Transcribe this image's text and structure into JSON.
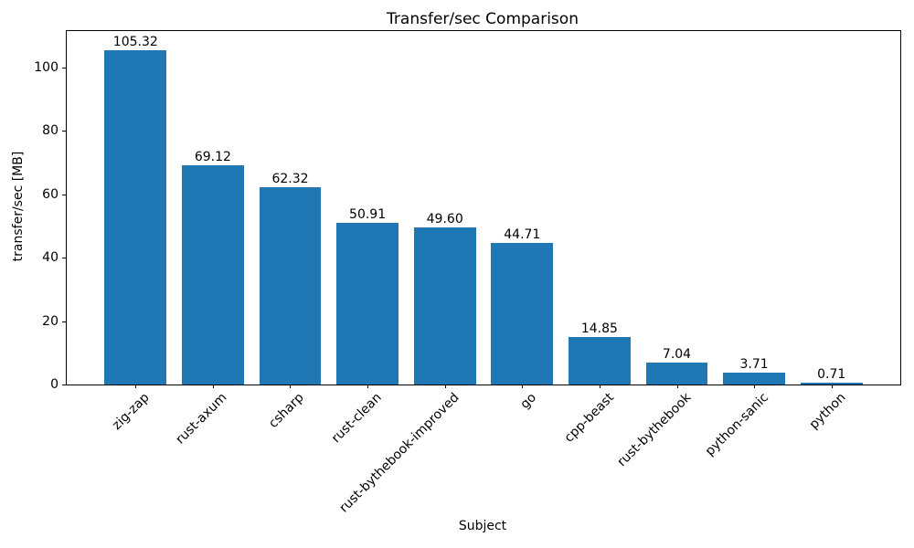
{
  "figure": {
    "background_color": "#ffffff",
    "text_color": "#000000",
    "spine_color": "#000000"
  },
  "chart_data": {
    "type": "bar",
    "title": "Transfer/sec Comparison",
    "xlabel": "Subject",
    "ylabel": "transfer/sec [MB]",
    "categories": [
      "zig-zap",
      "rust-axum",
      "csharp",
      "rust-clean",
      "rust-bythebook-improved",
      "go",
      "cpp-beast",
      "rust-bythebook",
      "python-sanic",
      "python"
    ],
    "values": [
      105.32,
      69.12,
      62.32,
      50.91,
      49.6,
      44.71,
      14.85,
      7.04,
      3.71,
      0.71
    ],
    "bar_value_labels": [
      "105.32",
      "69.12",
      "62.32",
      "50.91",
      "49.60",
      "44.71",
      "14.85",
      "7.04",
      "3.71",
      "0.71"
    ],
    "yticks": [
      0,
      20,
      40,
      60,
      80,
      100
    ],
    "ylim": [
      0,
      111.4
    ],
    "xtick_rotation_deg": 45,
    "bar_color": "#1f77b4",
    "grid": false,
    "legend_position": "none"
  }
}
